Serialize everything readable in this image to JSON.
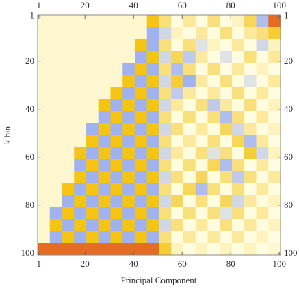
{
  "chart_data": {
    "type": "heatmap",
    "xlabel": "Principal Component",
    "ylabel": "k bin",
    "xlim": [
      0.5,
      100.5
    ],
    "ylim": [
      0.5,
      100.5
    ],
    "xticks": [
      1,
      20,
      40,
      60,
      80,
      100
    ],
    "yticks": [
      1,
      20,
      40,
      60,
      80,
      100
    ],
    "y_inverted": true,
    "matrix": [
      [
        0.05,
        0.05,
        0.05,
        0.05,
        0.05,
        0.05,
        0.05,
        0.05,
        0.05,
        0.6,
        0.3,
        0,
        0.2,
        0,
        0.3,
        0,
        0.1,
        0.4,
        -0.5,
        0.9
      ],
      [
        0.05,
        0.05,
        0.05,
        0.05,
        0.05,
        0.05,
        0.05,
        0.05,
        0.05,
        -0.6,
        -0.3,
        0.1,
        0,
        0.2,
        0,
        0.3,
        0,
        0.2,
        0.3,
        0.5
      ],
      [
        0.05,
        0.05,
        0.05,
        0.05,
        0.05,
        0.05,
        0.05,
        0.05,
        0.6,
        -0.6,
        0.3,
        0,
        0.3,
        -0.2,
        0.1,
        0,
        0.2,
        0,
        -0.3,
        0.1
      ],
      [
        0.05,
        0.05,
        0.05,
        0.05,
        0.05,
        0.05,
        0.05,
        0.05,
        -0.6,
        0.6,
        -0.3,
        0.4,
        -0.4,
        0.2,
        0,
        -0.2,
        0,
        0.3,
        0,
        0.2
      ],
      [
        0.05,
        0.05,
        0.05,
        0.05,
        0.05,
        0.05,
        0.05,
        -0.6,
        0.6,
        -0.6,
        0.3,
        -0.5,
        0.3,
        0,
        0.3,
        0,
        0.2,
        0,
        0.1,
        0
      ],
      [
        0.05,
        0.05,
        0.05,
        0.05,
        0.05,
        0.05,
        0.05,
        0.6,
        -0.6,
        0.6,
        -0.3,
        0.5,
        -0.6,
        0.2,
        0,
        0.3,
        0,
        -0.2,
        0,
        0.2
      ],
      [
        0.05,
        0.05,
        0.05,
        0.05,
        0.05,
        0.05,
        0.6,
        -0.6,
        0.6,
        -0.6,
        0.3,
        -0.4,
        0.2,
        0,
        0.2,
        0,
        0.3,
        0,
        0.2,
        0
      ],
      [
        0.05,
        0.05,
        0.05,
        0.05,
        0.05,
        0.6,
        -0.6,
        0.6,
        -0.6,
        0.6,
        -0.3,
        0.2,
        0,
        0.3,
        -0.4,
        0.2,
        0,
        0.3,
        0,
        0.1
      ],
      [
        0.05,
        0.05,
        0.05,
        0.05,
        0.05,
        -0.6,
        0.6,
        -0.6,
        0.6,
        -0.6,
        0.3,
        0,
        0.3,
        0,
        0.3,
        -0.5,
        0.3,
        0,
        0.2,
        0
      ],
      [
        0.05,
        0.05,
        0.05,
        0.05,
        -0.6,
        0.6,
        -0.6,
        0.6,
        -0.6,
        0.6,
        -0.3,
        0.3,
        0,
        0.2,
        0,
        0.4,
        -0.3,
        0.2,
        0,
        0.1
      ],
      [
        0.05,
        0.05,
        0.05,
        0.05,
        0.6,
        -0.6,
        0.6,
        -0.6,
        0.6,
        -0.6,
        0.3,
        0,
        0.2,
        0,
        0.3,
        0,
        0.4,
        -0.5,
        0.2,
        0
      ],
      [
        0.05,
        0.05,
        0.05,
        0.6,
        -0.6,
        0.6,
        -0.6,
        0.6,
        -0.6,
        0.6,
        -0.3,
        0.2,
        0,
        0.3,
        -0.2,
        0.3,
        0,
        0.5,
        -0.3,
        0.1
      ],
      [
        0.05,
        0.05,
        0.05,
        -0.6,
        0.6,
        -0.6,
        0.6,
        -0.6,
        0.6,
        -0.6,
        0.3,
        0,
        0.3,
        0,
        0.4,
        -0.5,
        0.3,
        0,
        0.2,
        0
      ],
      [
        0.05,
        0.05,
        0.05,
        0.6,
        -0.6,
        0.6,
        -0.6,
        0.6,
        -0.6,
        0.6,
        -0.3,
        0.3,
        0,
        0.4,
        0,
        0.3,
        -0.4,
        0.3,
        0,
        0.2
      ],
      [
        0.05,
        0.05,
        0.6,
        -0.6,
        0.6,
        -0.6,
        0.6,
        -0.6,
        0.6,
        -0.6,
        0.3,
        0,
        0.4,
        -0.5,
        0.3,
        0,
        0.3,
        0,
        0.2,
        0
      ],
      [
        0.05,
        0.05,
        -0.6,
        0.6,
        -0.6,
        0.6,
        -0.6,
        0.6,
        -0.6,
        0.6,
        -0.3,
        0.4,
        0,
        0.3,
        0,
        0.4,
        -0.3,
        0.2,
        0,
        0.1
      ],
      [
        0.05,
        -0.6,
        0.6,
        -0.6,
        0.6,
        -0.6,
        0.6,
        -0.6,
        0.6,
        -0.6,
        0.3,
        0,
        0.3,
        0,
        0.3,
        -0.2,
        0.3,
        0,
        0.2,
        0
      ],
      [
        0.05,
        0.6,
        -0.6,
        0.6,
        -0.6,
        0.6,
        -0.6,
        0.6,
        -0.6,
        0.6,
        -0.3,
        0.3,
        0,
        0.2,
        0,
        0.3,
        0,
        0.2,
        0,
        0.1
      ],
      [
        0.05,
        -0.6,
        0.6,
        -0.6,
        0.6,
        -0.6,
        0.6,
        -0.6,
        0.6,
        -0.6,
        0.3,
        0,
        0.2,
        0,
        0.2,
        0,
        0.2,
        0,
        0.1,
        0
      ],
      [
        0.9,
        0.9,
        0.9,
        0.9,
        0.9,
        0.9,
        0.9,
        0.9,
        0.9,
        0.9,
        0.5,
        0.1,
        0,
        0.1,
        0,
        0.1,
        0,
        0.1,
        0,
        0.05
      ]
    ]
  }
}
